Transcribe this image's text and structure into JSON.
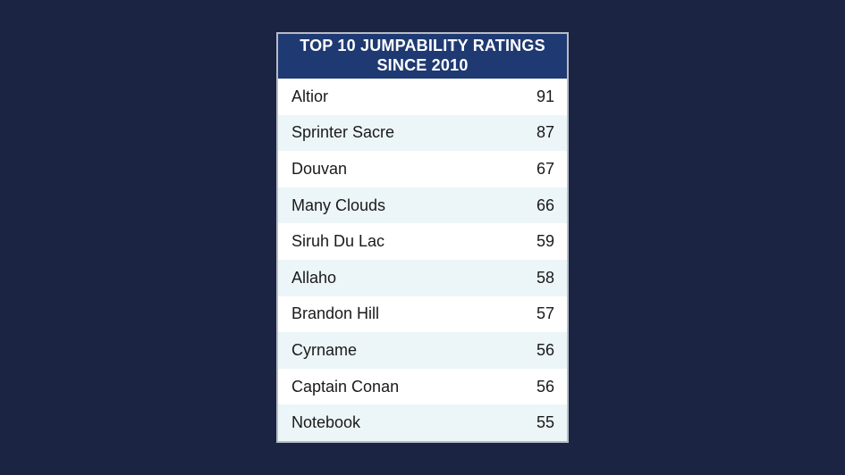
{
  "colors": {
    "background": "#1c2444",
    "header_background": "#1f3a72",
    "header_text": "#ffffff",
    "row_alt_background": "#ecf5f8",
    "border": "#b7bcc6"
  },
  "table": {
    "title_line1": "TOP 10 JUMPABILITY RATINGS",
    "title_line2": "SINCE 2010",
    "rows": [
      {
        "name": "Altior",
        "rating": "91"
      },
      {
        "name": "Sprinter Sacre",
        "rating": "87"
      },
      {
        "name": "Douvan",
        "rating": "67"
      },
      {
        "name": "Many Clouds",
        "rating": "66"
      },
      {
        "name": "Siruh Du Lac",
        "rating": "59"
      },
      {
        "name": "Allaho",
        "rating": "58"
      },
      {
        "name": "Brandon Hill",
        "rating": "57"
      },
      {
        "name": "Cyrname",
        "rating": "56"
      },
      {
        "name": "Captain Conan",
        "rating": "56"
      },
      {
        "name": "Notebook",
        "rating": "55"
      }
    ]
  }
}
